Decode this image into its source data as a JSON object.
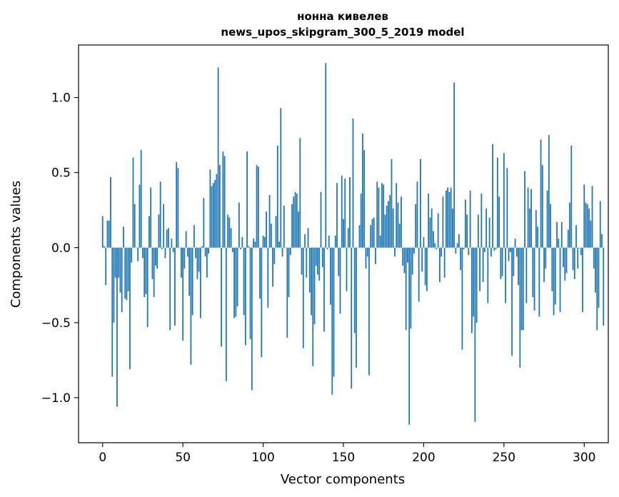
{
  "chart_data": {
    "type": "bar",
    "title": [
      "нонна кивелев",
      "news_upos_skipgram_300_5_2019 model"
    ],
    "xlabel": "Vector components",
    "ylabel": "Components values",
    "xlim": [
      -15,
      315
    ],
    "ylim": [
      -1.3,
      1.35
    ],
    "xticks": [
      0,
      50,
      100,
      150,
      200,
      250,
      300
    ],
    "xtick_labels": [
      "0",
      "50",
      "100",
      "150",
      "200",
      "250",
      "300"
    ],
    "yticks": [
      -1.0,
      -0.5,
      0.0,
      0.5,
      1.0
    ],
    "ytick_labels": [
      "−1.0",
      "−0.5",
      "0.0",
      "0.5",
      "1.0"
    ],
    "bar_color": "#1f77b4",
    "values": [
      0.21,
      0.01,
      -0.25,
      0.18,
      0.18,
      0.47,
      -0.86,
      -0.5,
      -0.2,
      -1.06,
      -0.2,
      -0.3,
      -0.43,
      0.14,
      -0.34,
      -0.35,
      -0.29,
      -0.81,
      -0.1,
      0.6,
      0.29,
      0.0,
      -0.09,
      0.42,
      0.65,
      -0.07,
      -0.33,
      -0.31,
      -0.53,
      0.21,
      0.4,
      -0.21,
      -0.33,
      -0.12,
      -0.14,
      0.22,
      0.44,
      -0.01,
      0.29,
      -0.07,
      0.12,
      0.13,
      -0.55,
      0.06,
      -0.03,
      -0.52,
      0.57,
      0.53,
      0.0,
      -0.2,
      -0.62,
      -0.14,
      0.11,
      -0.06,
      -0.32,
      -0.78,
      -0.45,
      0.15,
      -0.07,
      -0.21,
      -0.16,
      -0.47,
      0.01,
      0.33,
      -0.06,
      -0.2,
      -0.04,
      0.52,
      0.41,
      0.43,
      0.45,
      0.49,
      1.2,
      0.55,
      -0.66,
      0.64,
      0.61,
      -0.89,
      0.22,
      0.2,
      0.13,
      -0.03,
      -0.47,
      -0.46,
      -0.39,
      0.3,
      -0.01,
      0.07,
      -0.45,
      -0.65,
      0.64,
      0.01,
      -0.61,
      -0.95,
      0.06,
      0.04,
      0.55,
      0.54,
      -0.34,
      -0.73,
      0.08,
      0.07,
      0.24,
      -0.4,
      0.35,
      0.16,
      -0.26,
      -0.11,
      0.21,
      0.68,
      0.04,
      0.93,
      -0.06,
      0.28,
      0.0,
      -0.6,
      -0.33,
      -0.05,
      0.29,
      0.34,
      0.37,
      0.36,
      0.24,
      0.73,
      -0.18,
      -0.67,
      0.09,
      -0.2,
      0.13,
      -0.3,
      -0.45,
      -0.79,
      -0.51,
      -0.12,
      -0.18,
      -0.22,
      0.37,
      -0.13,
      -0.56,
      1.23,
      -0.01,
      0.08,
      -0.38,
      -0.98,
      -0.86,
      0.08,
      0.43,
      -0.19,
      -0.44,
      0.48,
      0.19,
      0.46,
      -0.29,
      0.13,
      0.47,
      -0.94,
      0.86,
      -0.57,
      -0.8,
      0.0,
      0.15,
      0.36,
      0.76,
      0.65,
      -0.14,
      -0.06,
      -0.85,
      0.15,
      0.19,
      0.2,
      -0.11,
      0.44,
      0.4,
      0.08,
      0.43,
      0.42,
      0.22,
      0.28,
      0.31,
      0.35,
      0.59,
      0.26,
      -0.06,
      0.43,
      0.3,
      0.16,
      0.34,
      -0.12,
      -0.17,
      -0.55,
      -0.1,
      -1.18,
      -0.54,
      -0.18,
      -0.04,
      0.29,
      0.44,
      -0.36,
      0.59,
      -0.16,
      0.07,
      -0.25,
      -0.29,
      0.36,
      0.2,
      0.26,
      0.11,
      0.03,
      -0.01,
      0.23,
      -0.23,
      -0.06,
      0.34,
      -0.2,
      0.38,
      0.4,
      0.37,
      0.4,
      0.26,
      1.1,
      -0.04,
      0.03,
      0.09,
      -0.15,
      -0.68,
      -0.01,
      0.32,
      0.22,
      -0.05,
      0.38,
      -0.57,
      -0.46,
      -1.16,
      -0.5,
      0.22,
      -0.29,
      0.36,
      -0.23,
      -0.03,
      0.26,
      -0.37,
      0.2,
      -0.06,
      0.69,
      -0.02,
      -0.01,
      0.6,
      0.34,
      -0.21,
      -0.19,
      0.63,
      -0.37,
      0.53,
      -0.09,
      -0.03,
      -0.72,
      -0.19,
      0.06,
      -0.06,
      -0.25,
      -0.8,
      -0.55,
      -0.55,
      0.51,
      -0.37,
      0.4,
      0.26,
      0.39,
      -0.33,
      -0.42,
      0.25,
      0.14,
      -0.46,
      0.72,
      0.55,
      -0.23,
      -0.14,
      0.38,
      0.75,
      0.29,
      -0.29,
      -0.45,
      -0.38,
      0.17,
      0.06,
      -0.43,
      0.17,
      -0.13,
      -0.22,
      -0.17,
      0.12,
      0.3,
      0.68,
      -0.15,
      -0.21,
      0.15,
      -0.14,
      0.0,
      -0.05,
      -0.43,
      0.42,
      0.3,
      0.29,
      0.26,
      0.18,
      0.41,
      -0.14,
      -0.3,
      -0.55,
      -0.4,
      0.31,
      0.09,
      -0.52
    ]
  }
}
